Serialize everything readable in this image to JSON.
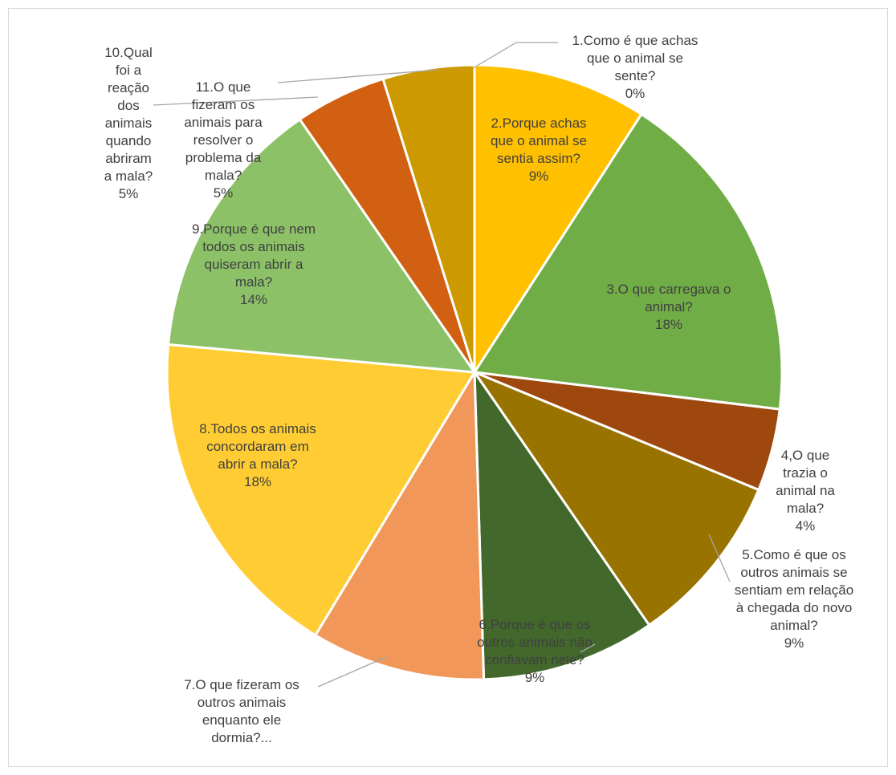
{
  "chart_data": {
    "type": "pie",
    "title": "",
    "slices": [
      {
        "label": "1.Como é que achas que o animal se sente?",
        "value": 0,
        "value_label": "0%",
        "color": "#FFC000",
        "label_lines": [
          "1.Como é que achas",
          "que o animal se",
          "sente?",
          "0%"
        ]
      },
      {
        "label": "2.Porque achas que o animal se sentia assim?",
        "value": 9.5,
        "value_label": "9%",
        "color": "#FFC000",
        "label_lines": [
          "2.Porque achas",
          "que o animal se",
          "sentia assim?",
          "9%"
        ]
      },
      {
        "label": "3.O que carregava o animal?",
        "value": 18.5,
        "value_label": "18%",
        "color": "#70AD47",
        "label_lines": [
          "3.O que carregava o",
          "animal?",
          "18%"
        ]
      },
      {
        "label": "4,O que trazia o animal na mala?",
        "value": 4.5,
        "value_label": "4%",
        "color": "#9E480E",
        "label_lines": [
          "4,O que",
          "trazia o",
          "animal na",
          "mala?",
          "4%"
        ]
      },
      {
        "label": "5.Como é que os outros animais se sentiam em relação à chegada do novo animal?",
        "value": 9.5,
        "value_label": "9%",
        "color": "#997300",
        "label_lines": [
          "5.Como é que os",
          "outros animais se",
          "sentiam em relação",
          "à chegada do novo",
          "animal?",
          "9%"
        ]
      },
      {
        "label": "6.Porque é que os outros animais não confiavam nele?",
        "value": 9.5,
        "value_label": "9%",
        "color": "#43682B",
        "label_lines": [
          "6.Porque é que os",
          "outros animais não",
          "confiavam nele?",
          "9%"
        ]
      },
      {
        "label": "7.O que fizeram os outros animais enquanto ele dormia?...",
        "value": 9.5,
        "value_label": "",
        "color": "#F1975A",
        "label_lines": [
          "7.O que fizeram os",
          "outros animais",
          "enquanto ele",
          "dormia?..."
        ]
      },
      {
        "label": "8.Todos os animais concordaram em abrir a mala?",
        "value": 18.5,
        "value_label": "18%",
        "color": "#FFCD33",
        "label_lines": [
          "8.Todos os animais",
          "concordaram em",
          "abrir a mala?",
          "18%"
        ]
      },
      {
        "label": "9.Porque é que nem todos os animais quiseram abrir a mala?",
        "value": 14.5,
        "value_label": "14%",
        "color": "#8CC168",
        "label_lines": [
          "9.Porque é que nem",
          "todos os animais",
          "quiseram abrir a",
          "mala?",
          "14%"
        ]
      },
      {
        "label": "10.Qual foi a reação dos animais quando abriram a mala?",
        "value": 5,
        "value_label": "5%",
        "color": "#D26012",
        "label_lines": [
          "10.Qual",
          "foi a",
          "reação",
          "dos",
          "animais",
          "quando",
          "abriram",
          "a mala?",
          "5%"
        ]
      },
      {
        "label": "11.O que fizeram os animais para resolver o problema da mala?",
        "value": 5,
        "value_label": "5%",
        "color": "#CC9A00",
        "label_lines": [
          "11.O que",
          "fizeram os",
          "animais para",
          "resolver o",
          "problema da",
          "mala?",
          "5%"
        ]
      }
    ],
    "legend": "none",
    "start_angle": "12 o'clock",
    "direction": "clockwise"
  }
}
